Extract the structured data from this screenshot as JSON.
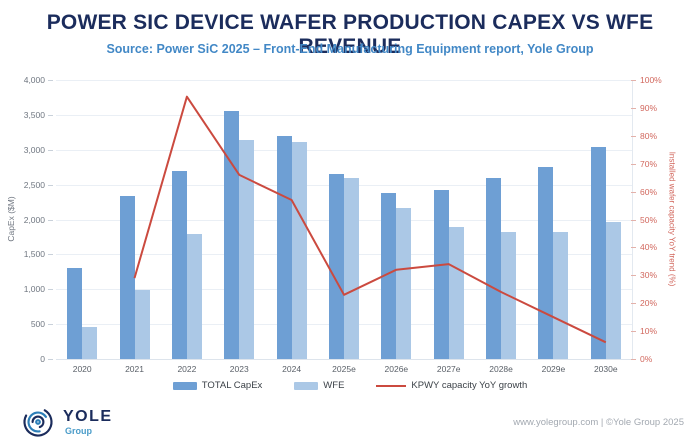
{
  "header": {
    "title": "POWER SIC DEVICE WAFER PRODUCTION CAPEX VS WFE REVENUE",
    "subtitle": "Source: Power SiC 2025 – Front-End Manufacturing Equipment report, Yole Group"
  },
  "colors": {
    "title": "#1b2c5c",
    "subtitle": "#4288c6",
    "capex_bar": "#6e9fd4",
    "wfe_bar": "#abc8e6",
    "growth_line": "#cb4a3f",
    "right_axis_text": "#d2685e",
    "left_axis_text": "#6f7680"
  },
  "chart_data": {
    "type": "bar",
    "subtype": "grouped bars + line overlay (dual axis)",
    "categories": [
      "2020",
      "2021",
      "2022",
      "2023",
      "2024",
      "2025e",
      "2026e",
      "2027e",
      "2028e",
      "2029e",
      "2030e"
    ],
    "series": [
      {
        "name": "TOTAL CapEx",
        "type": "bar",
        "axis": "left",
        "color": "#6e9fd4",
        "values": [
          1300,
          2330,
          2700,
          3550,
          3200,
          2650,
          2380,
          2430,
          2590,
          2750,
          3040
        ]
      },
      {
        "name": "WFE",
        "type": "bar",
        "axis": "left",
        "color": "#abc8e6",
        "values": [
          460,
          990,
          1790,
          3140,
          3110,
          2600,
          2160,
          1890,
          1820,
          1820,
          1970
        ]
      },
      {
        "name": "KPWY capacity YoY growth",
        "type": "line",
        "axis": "right",
        "color": "#cb4a3f",
        "values": [
          null,
          29,
          94,
          66,
          57,
          23,
          32,
          34,
          24,
          15,
          6
        ]
      }
    ],
    "y_left": {
      "label": "CapEx ($M)",
      "min": 0,
      "max": 4000,
      "step": 500,
      "ticks": [
        "0",
        "500",
        "1,000",
        "1,500",
        "2,000",
        "2,500",
        "3,000",
        "3,500",
        "4,000"
      ]
    },
    "y_right": {
      "label": "Installed wafer capacity YoY trend (%)",
      "min": 0,
      "max": 100,
      "step": 10,
      "ticks": [
        "0%",
        "10%",
        "20%",
        "30%",
        "40%",
        "50%",
        "60%",
        "70%",
        "80%",
        "90%",
        "100%"
      ]
    },
    "grid": true,
    "legend_position": "bottom"
  },
  "footer": {
    "logo_text": "YOLE",
    "logo_subtext": "Group",
    "credit": "www.yolegroup.com | ©Yole Group 2025"
  }
}
